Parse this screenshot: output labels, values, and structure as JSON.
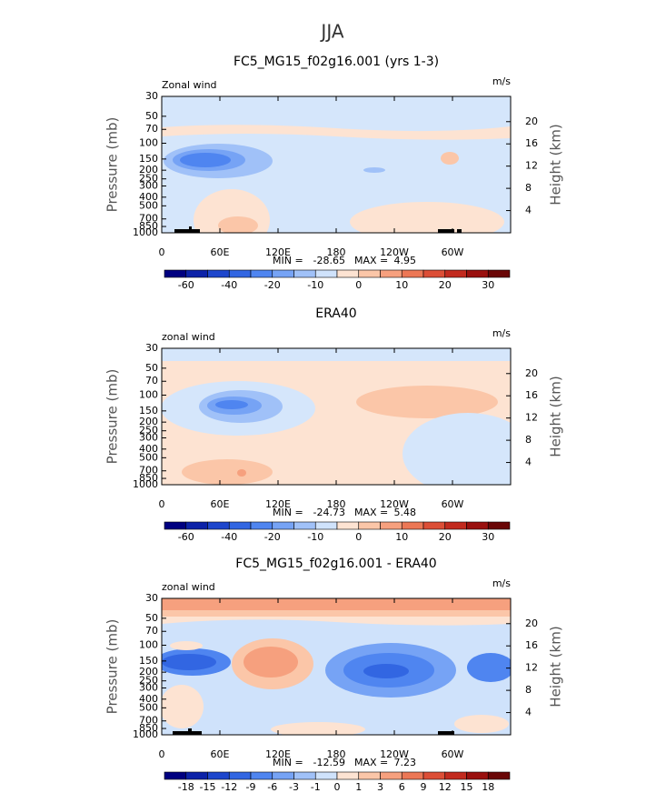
{
  "title": "JJA",
  "y_label": "Pressure (mb)",
  "y2_label": "Height (km)",
  "yticks": [
    30,
    50,
    70,
    100,
    150,
    200,
    250,
    300,
    400,
    500,
    700,
    850,
    1000
  ],
  "y2ticks": [
    20,
    16,
    12,
    8,
    4
  ],
  "xlim": [
    0,
    360
  ],
  "xticks": [
    0,
    {
      "value": 60,
      "label": "60E"
    },
    {
      "value": 120,
      "label": "120E"
    },
    180,
    {
      "value": 240,
      "label": "120W"
    },
    {
      "value": 300,
      "label": "60W"
    }
  ],
  "min_label": "MIN =",
  "max_label": "MAX =",
  "panels": [
    {
      "title": "FC5_MG15_f02g16.001 (yrs 1-3)",
      "left_label": "Zonal wind",
      "right_label": "m/s",
      "min": -28.65,
      "max": 4.95,
      "colorbar": {
        "colors": [
          "#000080",
          "#0c22a8",
          "#1d46cc",
          "#3266e2",
          "#4f85f0",
          "#76a3f5",
          "#a0c1f8",
          "#cfe2fb",
          "#fde3d2",
          "#fbc6a8",
          "#f6a07e",
          "#ec7755",
          "#dc4e36",
          "#c22a1e",
          "#9a100e",
          "#6a0606"
        ],
        "labels": [
          -60,
          -40,
          -20,
          -10,
          0,
          10,
          20,
          30
        ]
      }
    },
    {
      "title": "ERA40",
      "left_label": "zonal wind",
      "right_label": "m/s",
      "min": -24.73,
      "max": 5.48,
      "colorbar": {
        "colors": [
          "#000080",
          "#0c22a8",
          "#1d46cc",
          "#3266e2",
          "#4f85f0",
          "#76a3f5",
          "#a0c1f8",
          "#cfe2fb",
          "#fde3d2",
          "#fbc6a8",
          "#f6a07e",
          "#ec7755",
          "#dc4e36",
          "#c22a1e",
          "#9a100e",
          "#6a0606"
        ],
        "labels": [
          -60,
          -40,
          -20,
          -10,
          0,
          10,
          20,
          30
        ]
      }
    },
    {
      "title": "FC5_MG15_f02g16.001 - ERA40",
      "left_label": "zonal wind",
      "right_label": "m/s",
      "min": -12.59,
      "max": 7.23,
      "colorbar": {
        "colors": [
          "#000080",
          "#0c22a8",
          "#1d46cc",
          "#3266e2",
          "#4f85f0",
          "#76a3f5",
          "#a0c1f8",
          "#cfe2fb",
          "#fde3d2",
          "#fbc6a8",
          "#f6a07e",
          "#ec7755",
          "#dc4e36",
          "#c22a1e",
          "#9a100e",
          "#6a0606"
        ],
        "labels": [
          -18,
          -15,
          -12,
          -9,
          -6,
          -3,
          -1,
          0,
          1,
          3,
          6,
          9,
          12,
          15,
          18
        ]
      }
    }
  ]
}
